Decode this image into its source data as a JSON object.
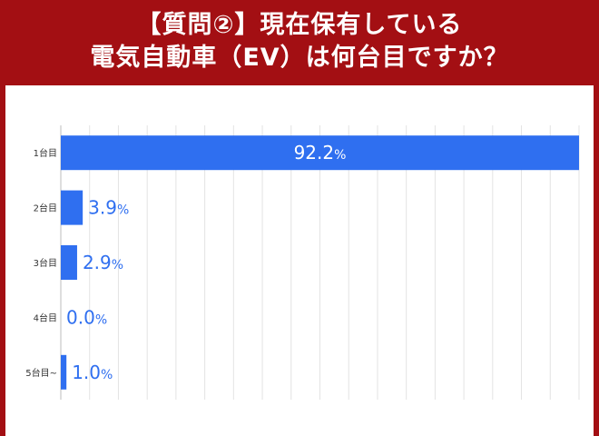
{
  "header": {
    "title_line1": "【質問②】現在保有している",
    "title_line2": "電気自動車（EV）は何台目ですか？"
  },
  "colors": {
    "background": "#a30f13",
    "bar": "#2f6ff0",
    "label_inside": "#ffffff",
    "label_outside": "#2f6ff0",
    "grid": "#e3e3e3"
  },
  "chart_data": {
    "type": "bar",
    "orientation": "horizontal",
    "categories": [
      "1台目",
      "2台目",
      "3台目",
      "4台目",
      "5台目~"
    ],
    "values": [
      92.2,
      3.9,
      2.9,
      0.0,
      1.0
    ],
    "value_labels": [
      "92.2",
      "3.9",
      "2.9",
      "0.0",
      "1.0"
    ],
    "unit": "%",
    "xlim": [
      0,
      92.2
    ],
    "grid": true,
    "legend": "none"
  }
}
